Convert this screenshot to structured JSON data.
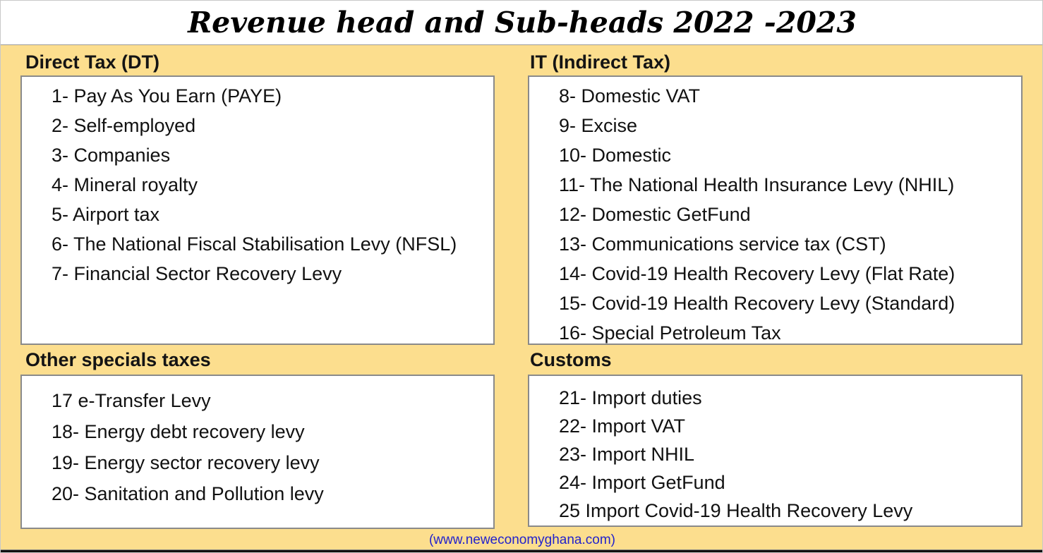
{
  "title": "Revenue head and Sub-heads 2022 -2023",
  "sections": {
    "direct_tax": {
      "heading": "Direct Tax (DT)",
      "items": [
        "1- Pay As You Earn (PAYE)",
        "2- Self-employed",
        "3- Companies",
        "4- Mineral royalty",
        "5- Airport tax",
        "6- The National Fiscal Stabilisation Levy (NFSL)",
        "7- Financial Sector Recovery Levy"
      ]
    },
    "indirect_tax": {
      "heading": "IT (Indirect Tax)",
      "items": [
        "8- Domestic VAT",
        "9- Excise",
        "10- Domestic",
        "11- The National Health Insurance Levy (NHIL)",
        "12- Domestic GetFund",
        "13- Communications service tax (CST)",
        "14- Covid-19 Health Recovery Levy (Flat Rate)",
        "15- Covid-19 Health Recovery Levy (Standard)",
        "16- Special Petroleum Tax"
      ]
    },
    "other_special_taxes": {
      "heading": "Other specials taxes",
      "items": [
        "17 e-Transfer Levy",
        "18- Energy debt recovery levy",
        "19- Energy sector recovery levy",
        "20- Sanitation and Pollution levy"
      ]
    },
    "customs": {
      "heading": "Customs",
      "items": [
        "21- Import duties",
        "22- Import VAT",
        "23- Import NHIL",
        "24- Import GetFund",
        "25 Import Covid-19 Health Recovery Levy"
      ]
    }
  },
  "footer": {
    "website_label": "(www.neweconomyghana.com)"
  },
  "colors": {
    "background": "#FCDE8E",
    "box_border": "#8A8A8A",
    "footer_link": "#2222CC",
    "text": "#141414",
    "bottom_bar": "#101010"
  }
}
